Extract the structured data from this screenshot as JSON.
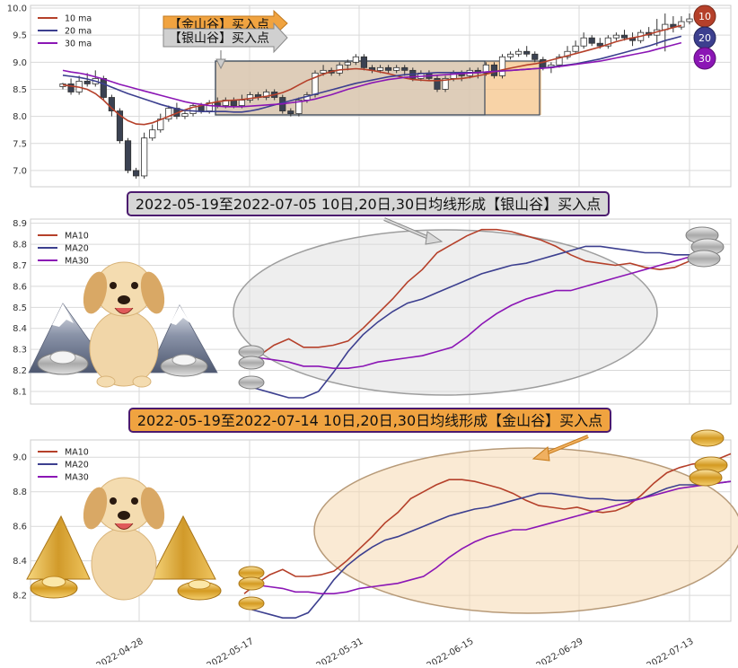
{
  "x_dates": [
    "2022-04-28",
    "2022-05-17",
    "2022-05-31",
    "2022-06-15",
    "2022-06-29",
    "2022-07-13"
  ],
  "banners": {
    "silver": "2022-05-19至2022-07-05 10日,20日,30日均线形成【银山谷】买入点",
    "gold": "2022-05-19至2022-07-14 10日,20日,30日均线形成【金山谷】买入点"
  },
  "top_callouts": {
    "gold": "【金山谷】买入点",
    "silver": "【银山谷】买入点"
  },
  "badges": [
    "10",
    "20",
    "30"
  ],
  "colors": {
    "ma10": "#b5402a",
    "ma20": "#3c3f8f",
    "ma30": "#8b16b5",
    "silver_fill": "#d9d9d9",
    "gold_fill": "#f5c48a",
    "banner_silver": "#d6d6d6",
    "banner_gold": "#f0a340",
    "banner_border": "#4b1a6e"
  },
  "chart_data": [
    {
      "type": "candlestick",
      "ylim": [
        6.7,
        10.05
      ],
      "yticks": [
        "7.0",
        "7.5",
        "8.0",
        "8.5",
        "9.0",
        "9.5",
        "10.0"
      ],
      "legend": [
        "10 ma",
        "20 ma",
        "30 ma"
      ],
      "candles": [
        [
          8.55,
          8.6,
          8.5,
          8.62
        ],
        [
          8.6,
          8.45,
          8.4,
          8.7
        ],
        [
          8.45,
          8.65,
          8.4,
          8.75
        ],
        [
          8.65,
          8.6,
          8.55,
          8.8
        ],
        [
          8.6,
          8.7,
          8.55,
          8.85
        ],
        [
          8.7,
          8.35,
          8.3,
          8.75
        ],
        [
          8.35,
          8.1,
          8.0,
          8.4
        ],
        [
          8.1,
          7.55,
          7.5,
          8.15
        ],
        [
          7.55,
          7.0,
          6.95,
          7.6
        ],
        [
          7.0,
          6.9,
          6.85,
          7.05
        ],
        [
          6.9,
          7.6,
          6.85,
          7.7
        ],
        [
          7.6,
          7.75,
          7.55,
          7.85
        ],
        [
          7.75,
          7.95,
          7.7,
          8.05
        ],
        [
          7.95,
          8.15,
          7.9,
          8.2
        ],
        [
          8.15,
          8.0,
          7.95,
          8.25
        ],
        [
          8.0,
          8.05,
          7.95,
          8.1
        ],
        [
          8.05,
          8.2,
          8.0,
          8.25
        ],
        [
          8.2,
          8.1,
          8.05,
          8.25
        ],
        [
          8.1,
          8.25,
          8.05,
          8.3
        ],
        [
          8.25,
          8.2,
          8.15,
          8.35
        ],
        [
          8.2,
          8.3,
          8.15,
          8.35
        ],
        [
          8.3,
          8.2,
          8.15,
          8.35
        ],
        [
          8.2,
          8.3,
          8.15,
          8.4
        ],
        [
          8.3,
          8.4,
          8.25,
          8.45
        ],
        [
          8.4,
          8.35,
          8.3,
          8.45
        ],
        [
          8.35,
          8.45,
          8.3,
          8.5
        ],
        [
          8.45,
          8.35,
          8.3,
          8.5
        ],
        [
          8.35,
          8.1,
          8.05,
          8.4
        ],
        [
          8.1,
          8.05,
          8.0,
          8.15
        ],
        [
          8.05,
          8.3,
          8.0,
          8.35
        ],
        [
          8.3,
          8.4,
          8.25,
          8.45
        ],
        [
          8.4,
          8.8,
          8.35,
          8.85
        ],
        [
          8.8,
          8.85,
          8.75,
          8.95
        ],
        [
          8.85,
          8.8,
          8.75,
          8.9
        ],
        [
          8.8,
          8.95,
          8.75,
          9.0
        ],
        [
          8.95,
          9.0,
          8.85,
          9.05
        ],
        [
          9.0,
          9.1,
          8.95,
          9.15
        ],
        [
          9.1,
          8.9,
          8.85,
          9.15
        ],
        [
          8.9,
          8.85,
          8.8,
          8.95
        ],
        [
          8.85,
          8.9,
          8.8,
          8.95
        ],
        [
          8.9,
          8.85,
          8.8,
          8.95
        ],
        [
          8.85,
          8.9,
          8.8,
          8.95
        ],
        [
          8.9,
          8.85,
          8.75,
          8.95
        ],
        [
          8.85,
          8.7,
          8.65,
          8.9
        ],
        [
          8.7,
          8.8,
          8.65,
          8.85
        ],
        [
          8.8,
          8.7,
          8.65,
          8.85
        ],
        [
          8.7,
          8.5,
          8.45,
          8.75
        ],
        [
          8.5,
          8.7,
          8.45,
          8.75
        ],
        [
          8.7,
          8.8,
          8.65,
          8.85
        ],
        [
          8.8,
          8.75,
          8.65,
          8.85
        ],
        [
          8.75,
          8.85,
          8.7,
          8.9
        ],
        [
          8.85,
          8.8,
          8.7,
          8.9
        ],
        [
          8.8,
          8.95,
          8.75,
          9.0
        ],
        [
          8.95,
          8.75,
          8.7,
          9.0
        ],
        [
          8.75,
          9.1,
          8.7,
          9.15
        ],
        [
          9.1,
          9.15,
          9.05,
          9.2
        ],
        [
          9.15,
          9.2,
          9.1,
          9.25
        ],
        [
          9.2,
          9.15,
          9.1,
          9.3
        ],
        [
          9.15,
          9.05,
          9.0,
          9.2
        ],
        [
          9.05,
          8.9,
          8.85,
          9.1
        ],
        [
          8.9,
          8.95,
          8.8,
          9.0
        ],
        [
          8.95,
          9.1,
          8.9,
          9.15
        ],
        [
          9.1,
          9.2,
          9.05,
          9.3
        ],
        [
          9.2,
          9.3,
          9.15,
          9.4
        ],
        [
          9.3,
          9.45,
          9.25,
          9.55
        ],
        [
          9.45,
          9.35,
          9.3,
          9.5
        ],
        [
          9.35,
          9.3,
          9.25,
          9.45
        ],
        [
          9.3,
          9.45,
          9.25,
          9.5
        ],
        [
          9.45,
          9.5,
          9.4,
          9.55
        ],
        [
          9.5,
          9.45,
          9.4,
          9.6
        ],
        [
          9.45,
          9.4,
          9.3,
          9.55
        ],
        [
          9.4,
          9.55,
          9.35,
          9.6
        ],
        [
          9.55,
          9.5,
          9.45,
          9.65
        ],
        [
          9.5,
          9.6,
          9.3,
          9.8
        ],
        [
          9.6,
          9.7,
          9.2,
          9.9
        ],
        [
          9.7,
          9.65,
          9.55,
          9.85
        ],
        [
          9.65,
          9.75,
          9.6,
          9.85
        ],
        [
          9.75,
          9.8,
          9.7,
          9.9
        ]
      ],
      "ma10": [
        8.58,
        8.56,
        8.54,
        8.5,
        8.42,
        8.3,
        8.15,
        8.02,
        7.92,
        7.86,
        7.85,
        7.88,
        7.94,
        8.0,
        8.06,
        8.12,
        8.17,
        8.2,
        8.24,
        8.27,
        8.29,
        8.3,
        8.31,
        8.33,
        8.35,
        8.37,
        8.4,
        8.44,
        8.5,
        8.58,
        8.66,
        8.72,
        8.78,
        8.83,
        8.86,
        8.87,
        8.88,
        8.87,
        8.85,
        8.82,
        8.79,
        8.75,
        8.71,
        8.68,
        8.67,
        8.66,
        8.66,
        8.67,
        8.69,
        8.7,
        8.72,
        8.75,
        8.78,
        8.82,
        8.86,
        8.89,
        8.92,
        8.95,
        8.97,
        9.0,
        9.04,
        9.08,
        9.12,
        9.16,
        9.2,
        9.24,
        9.28,
        9.33,
        9.38,
        9.42,
        9.45,
        9.48,
        9.52,
        9.56,
        9.6,
        9.64,
        9.68
      ],
      "ma20": [
        8.76,
        8.74,
        8.72,
        8.69,
        8.65,
        8.6,
        8.54,
        8.48,
        8.42,
        8.37,
        8.32,
        8.27,
        8.22,
        8.18,
        8.14,
        8.11,
        8.1,
        8.09,
        8.09,
        8.09,
        8.09,
        8.08,
        8.08,
        8.1,
        8.13,
        8.17,
        8.21,
        8.25,
        8.29,
        8.33,
        8.37,
        8.41,
        8.45,
        8.49,
        8.53,
        8.57,
        8.61,
        8.64,
        8.67,
        8.7,
        8.73,
        8.75,
        8.77,
        8.78,
        8.79,
        8.8,
        8.81,
        8.81,
        8.81,
        8.81,
        8.81,
        8.81,
        8.82,
        8.83,
        8.84,
        8.85,
        8.86,
        8.87,
        8.88,
        8.89,
        8.91,
        8.93,
        8.95,
        8.97,
        9.0,
        9.03,
        9.06,
        9.1,
        9.14,
        9.18,
        9.22,
        9.26,
        9.3,
        9.35,
        9.4,
        9.44,
        9.48
      ],
      "ma30": [
        8.85,
        8.82,
        8.8,
        8.77,
        8.73,
        8.69,
        8.64,
        8.59,
        8.55,
        8.51,
        8.47,
        8.43,
        8.39,
        8.35,
        8.31,
        8.27,
        8.24,
        8.22,
        8.2,
        8.19,
        8.18,
        8.18,
        8.18,
        8.19,
        8.2,
        8.21,
        8.22,
        8.23,
        8.25,
        8.27,
        8.29,
        8.32,
        8.36,
        8.4,
        8.45,
        8.5,
        8.54,
        8.58,
        8.62,
        8.65,
        8.68,
        8.7,
        8.72,
        8.73,
        8.74,
        8.75,
        8.76,
        8.77,
        8.78,
        8.79,
        8.8,
        8.81,
        8.82,
        8.83,
        8.84,
        8.85,
        8.86,
        8.87,
        8.88,
        8.89,
        8.9,
        8.92,
        8.94,
        8.96,
        8.98,
        9.0,
        9.02,
        9.05,
        9.08,
        9.11,
        9.14,
        9.17,
        9.2,
        9.24,
        9.28,
        9.32,
        9.36
      ]
    },
    {
      "type": "line",
      "ylim": [
        8.04,
        8.92
      ],
      "yticks": [
        "8.1",
        "8.2",
        "8.3",
        "8.4",
        "8.5",
        "8.6",
        "8.7",
        "8.8",
        "8.9"
      ],
      "legend": [
        "MA10",
        "MA20",
        "MA30"
      ],
      "ma10": [
        8.21,
        8.27,
        8.32,
        8.35,
        8.31,
        8.31,
        8.32,
        8.34,
        8.4,
        8.47,
        8.54,
        8.62,
        8.68,
        8.76,
        8.8,
        8.84,
        8.87,
        8.87,
        8.86,
        8.84,
        8.82,
        8.79,
        8.75,
        8.72,
        8.71,
        8.7,
        8.71,
        8.69,
        8.68,
        8.69,
        8.72
      ],
      "ma20": [
        8.13,
        8.11,
        8.09,
        8.07,
        8.07,
        8.1,
        8.19,
        8.29,
        8.37,
        8.43,
        8.48,
        8.52,
        8.54,
        8.57,
        8.6,
        8.63,
        8.66,
        8.68,
        8.7,
        8.71,
        8.73,
        8.75,
        8.77,
        8.79,
        8.79,
        8.78,
        8.77,
        8.76,
        8.76,
        8.75,
        8.75
      ],
      "ma30": [
        8.26,
        8.26,
        8.25,
        8.24,
        8.22,
        8.22,
        8.21,
        8.21,
        8.22,
        8.24,
        8.25,
        8.26,
        8.27,
        8.29,
        8.31,
        8.36,
        8.42,
        8.47,
        8.51,
        8.54,
        8.56,
        8.58,
        8.58,
        8.6,
        8.62,
        8.64,
        8.66,
        8.68,
        8.7,
        8.72,
        8.74
      ]
    },
    {
      "type": "line",
      "ylim": [
        8.05,
        9.1
      ],
      "yticks": [
        "8.2",
        "8.4",
        "8.6",
        "8.8",
        "9.0"
      ],
      "legend": [
        "MA10",
        "MA20",
        "MA30"
      ],
      "ma10": [
        8.21,
        8.27,
        8.32,
        8.35,
        8.31,
        8.31,
        8.32,
        8.34,
        8.4,
        8.47,
        8.54,
        8.62,
        8.68,
        8.76,
        8.8,
        8.84,
        8.87,
        8.87,
        8.86,
        8.84,
        8.82,
        8.79,
        8.75,
        8.72,
        8.71,
        8.7,
        8.71,
        8.69,
        8.68,
        8.69,
        8.72,
        8.78,
        8.85,
        8.91,
        8.94,
        8.96,
        8.97,
        8.99,
        9.02
      ],
      "ma20": [
        8.13,
        8.11,
        8.09,
        8.07,
        8.07,
        8.1,
        8.19,
        8.29,
        8.37,
        8.43,
        8.48,
        8.52,
        8.54,
        8.57,
        8.6,
        8.63,
        8.66,
        8.68,
        8.7,
        8.71,
        8.73,
        8.75,
        8.77,
        8.79,
        8.79,
        8.78,
        8.77,
        8.76,
        8.76,
        8.75,
        8.75,
        8.76,
        8.79,
        8.82,
        8.84,
        8.84,
        8.84,
        8.85,
        8.86
      ],
      "ma30": [
        8.26,
        8.26,
        8.25,
        8.24,
        8.22,
        8.22,
        8.21,
        8.21,
        8.22,
        8.24,
        8.25,
        8.26,
        8.27,
        8.29,
        8.31,
        8.36,
        8.42,
        8.47,
        8.51,
        8.54,
        8.56,
        8.58,
        8.58,
        8.6,
        8.62,
        8.64,
        8.66,
        8.68,
        8.7,
        8.72,
        8.74,
        8.76,
        8.78,
        8.8,
        8.82,
        8.83,
        8.84,
        8.85,
        8.86
      ]
    }
  ]
}
